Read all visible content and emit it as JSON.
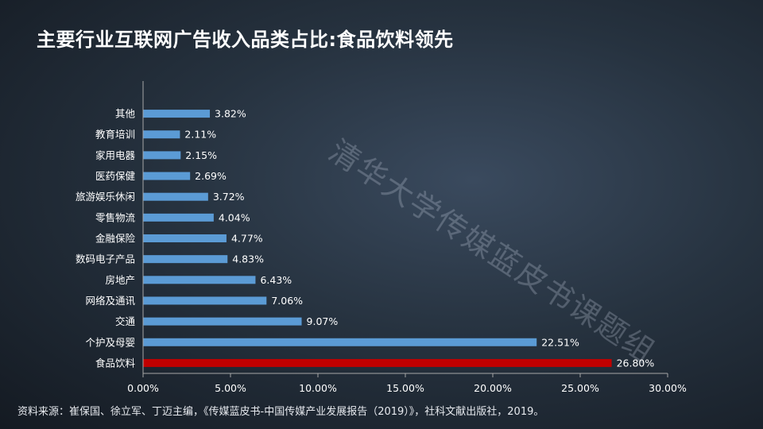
{
  "title": "主要行业互联网广告收入品类占比:食品饮料领先",
  "watermark": "清华大学传媒蓝皮书课题组",
  "source": "资料来源：崔保国、徐立军、丁迈主编，《传媒蓝皮书-中国传媒产业发展报告（2019）》，社科文献出版社，2019。",
  "colors": {
    "bar": "#5b9bd5",
    "highlight": "#c00000",
    "text": "#ffffff",
    "axis": "#a6a6a6"
  },
  "chart_data": {
    "type": "bar",
    "orientation": "horizontal",
    "categories": [
      "其他",
      "教育培训",
      "家用电器",
      "医药保健",
      "旅游娱乐休闲",
      "零售物流",
      "金融保险",
      "数码电子产品",
      "房地产",
      "网络及通讯",
      "交通",
      "个护及母婴",
      "食品饮料"
    ],
    "values": [
      3.82,
      2.11,
      2.15,
      2.69,
      3.72,
      4.04,
      4.77,
      4.83,
      6.43,
      7.06,
      9.07,
      22.51,
      26.8
    ],
    "data_labels": [
      "3.82%",
      "2.11%",
      "2.15%",
      "2.69%",
      "3.72%",
      "4.04%",
      "4.77%",
      "4.83%",
      "6.43%",
      "7.06%",
      "9.07%",
      "22.51%",
      "26.80%"
    ],
    "highlight_index": 12,
    "xlim": [
      0,
      30
    ],
    "xticks": [
      0,
      5,
      10,
      15,
      20,
      25,
      30
    ],
    "xtick_labels": [
      "0.00%",
      "5.00%",
      "10.00%",
      "15.00%",
      "20.00%",
      "25.00%",
      "30.00%"
    ],
    "grid": false,
    "legend": "none"
  }
}
